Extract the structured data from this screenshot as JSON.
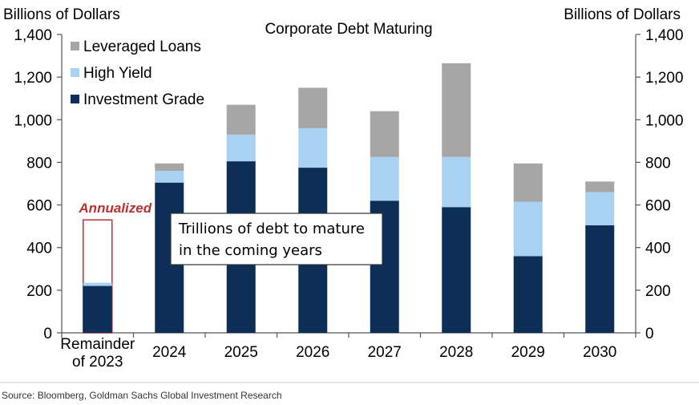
{
  "chart_data": {
    "type": "bar",
    "stacked": true,
    "title": "Corporate Debt Maturing",
    "ylabel_left": "Billions of Dollars",
    "ylabel_right": "Billions of Dollars",
    "ylim": [
      0,
      1400
    ],
    "yticks": [
      "0",
      "200",
      "400",
      "600",
      "800",
      "1,000",
      "1,200",
      "1,400"
    ],
    "categories": [
      "Remainder of 2023",
      "2024",
      "2025",
      "2026",
      "2027",
      "2028",
      "2029",
      "2030"
    ],
    "series": [
      {
        "name": "Investment Grade",
        "color": "#0d2f57",
        "values": [
          220,
          705,
          805,
          775,
          620,
          590,
          360,
          505
        ]
      },
      {
        "name": "High Yield",
        "color": "#a9d2f2",
        "values": [
          15,
          55,
          125,
          185,
          205,
          235,
          255,
          155
        ]
      },
      {
        "name": "Leveraged Loans",
        "color": "#a6a6a6",
        "values": [
          0,
          35,
          140,
          190,
          215,
          440,
          180,
          50
        ]
      }
    ],
    "legend": [
      "Leveraged Loans",
      "High Yield",
      "Investment Grade"
    ],
    "legend_position": "top-left",
    "annualized": {
      "label": "Annualized",
      "category": "Remainder of 2023",
      "value": 530,
      "color": "#b83232"
    },
    "annotation": {
      "lines": [
        "Trillions of debt to mature",
        "in the coming years"
      ]
    },
    "source": "Source: Bloomberg, Goldman Sachs Global Investment Research",
    "grid": false
  }
}
